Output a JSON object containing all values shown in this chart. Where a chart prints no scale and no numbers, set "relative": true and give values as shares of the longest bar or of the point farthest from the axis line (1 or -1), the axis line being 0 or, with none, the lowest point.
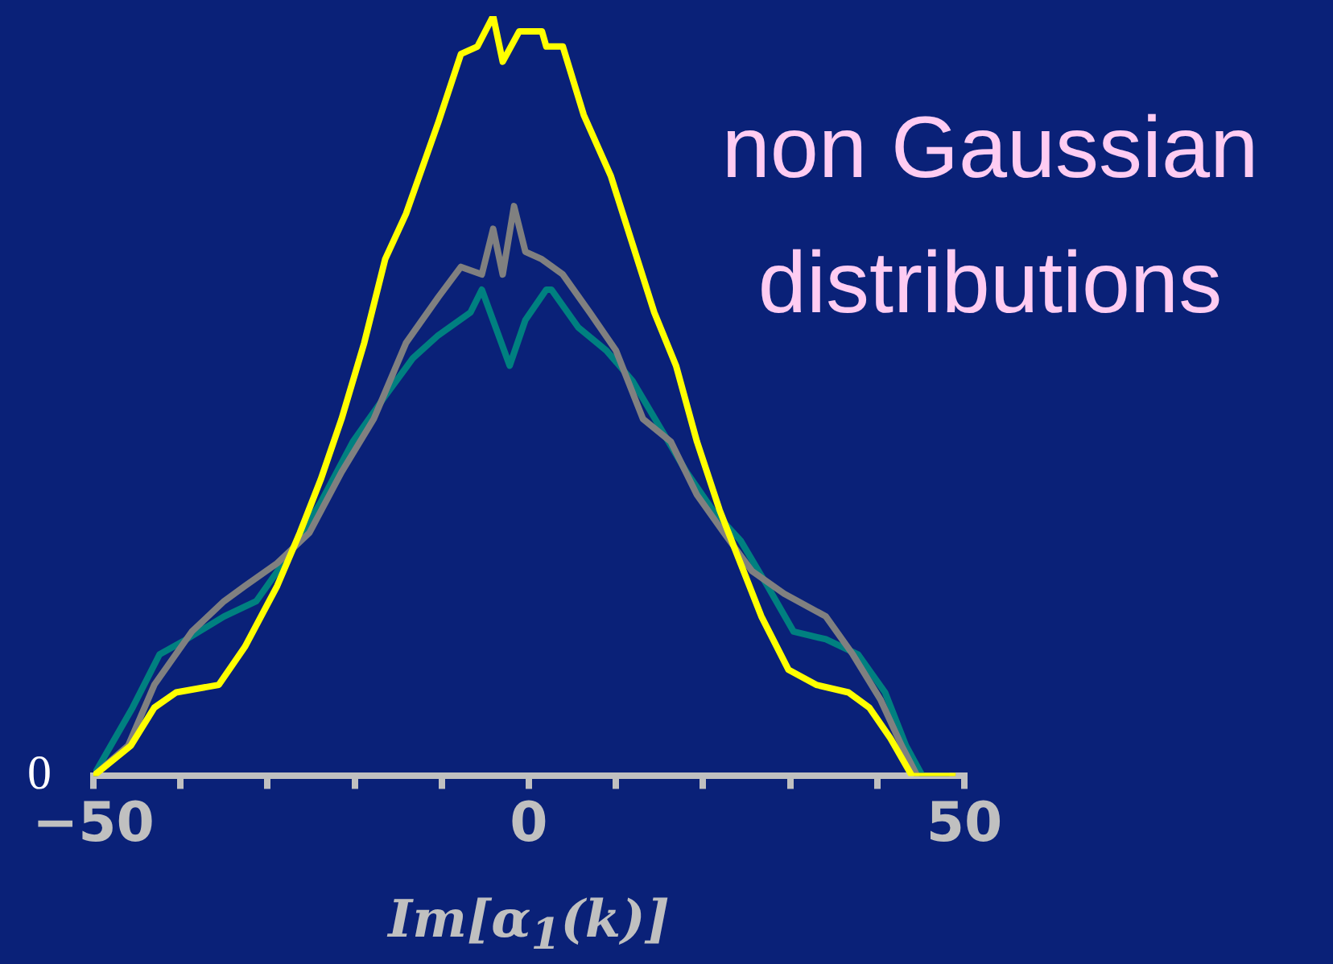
{
  "chart_data": {
    "type": "line",
    "relative": true,
    "xlabel": "Im[α$_{1}$(k)]",
    "xlim": [
      -50,
      50
    ],
    "xticks": [
      -50,
      {
        "value": -40,
        "label": null
      },
      {
        "value": -30,
        "label": null
      },
      {
        "value": -20,
        "label": null
      },
      {
        "value": -10,
        "label": null
      },
      0,
      {
        "value": 10,
        "label": null
      },
      {
        "value": 20,
        "label": null
      },
      {
        "value": 30,
        "label": null
      },
      {
        "value": 40,
        "label": null
      },
      50
    ],
    "annotations": [
      "0",
      "non Gaussian distributions"
    ],
    "series": [
      {
        "color": "#ffff00",
        "x": [
          -50,
          -45.7,
          -43,
          -40.5,
          -35.6,
          -32.6,
          -28.9,
          -26.3,
          -23.9,
          -21.5,
          -18.9,
          -16.5,
          -14.1,
          -10.4,
          -7.8,
          -5.9,
          -4.1,
          -3,
          -1.1,
          1.5,
          2,
          3.9,
          6.3,
          9.4,
          11.9,
          14.4,
          16.9,
          19.3,
          21.9,
          24.3,
          26.7,
          29.8,
          33,
          36.7,
          39.1,
          41.5,
          44,
          46.5,
          49
        ],
        "values": [
          0,
          0.04,
          0.09,
          0.11,
          0.12,
          0.17,
          0.25,
          0.32,
          0.39,
          0.47,
          0.57,
          0.68,
          0.74,
          0.86,
          0.95,
          0.96,
          1,
          0.94,
          0.98,
          0.98,
          0.96,
          0.96,
          0.87,
          0.79,
          0.7,
          0.61,
          0.54,
          0.44,
          0.35,
          0.28,
          0.21,
          0.14,
          0.12,
          0.11,
          0.09,
          0.05,
          0,
          0,
          0
        ]
      },
      {
        "color": "#808080",
        "x": [
          -50,
          -46,
          -43,
          -38.7,
          -35,
          -32.6,
          -28.9,
          -25.2,
          -21.5,
          -17.8,
          -14.1,
          -10.4,
          -7.8,
          -5.4,
          -4.1,
          -3,
          -1.7,
          -0.4,
          1.5,
          3.9,
          7,
          10,
          13.1,
          16.3,
          19.3,
          22.4,
          25.6,
          29.3,
          34.1,
          37.2,
          40.4,
          42.8,
          44.6,
          46.5,
          49
        ],
        "values": [
          0,
          0.04,
          0.12,
          0.19,
          0.23,
          0.25,
          0.28,
          0.32,
          0.4,
          0.47,
          0.57,
          0.63,
          0.67,
          0.66,
          0.72,
          0.66,
          0.75,
          0.69,
          0.68,
          0.66,
          0.61,
          0.56,
          0.47,
          0.44,
          0.37,
          0.32,
          0.27,
          0.24,
          0.21,
          0.16,
          0.1,
          0.04,
          0,
          0,
          0
        ]
      },
      {
        "color": "#008080",
        "x": [
          -50,
          -45.5,
          -42.4,
          -39.3,
          -35,
          -31.3,
          -27.6,
          -23.9,
          -20.2,
          -16.5,
          -13.3,
          -10.4,
          -6.7,
          -5.4,
          -2.2,
          -0.4,
          2,
          2.6,
          5.7,
          8.9,
          11.9,
          15,
          18.1,
          21.1,
          24.3,
          27.4,
          30.4,
          34.1,
          37.8,
          40.9,
          43.3,
          45.2,
          48.3
        ],
        "values": [
          0,
          0.09,
          0.16,
          0.18,
          0.21,
          0.23,
          0.29,
          0.36,
          0.44,
          0.5,
          0.55,
          0.58,
          0.61,
          0.64,
          0.54,
          0.6,
          0.64,
          0.64,
          0.59,
          0.56,
          0.52,
          0.46,
          0.4,
          0.35,
          0.31,
          0.25,
          0.19,
          0.18,
          0.16,
          0.11,
          0.04,
          0,
          0
        ]
      }
    ]
  }
}
